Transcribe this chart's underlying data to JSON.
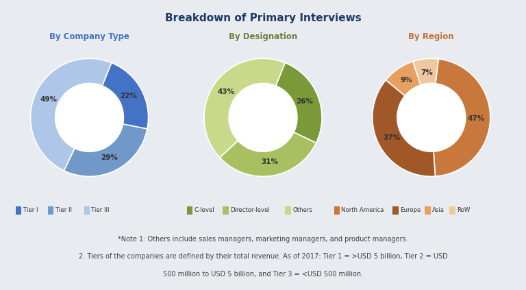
{
  "title": "Breakdown of Primary Interviews",
  "title_color": "#1f3864",
  "background_color": "#e8ecf0",
  "chart1_title": "By Company Type",
  "chart1_title_color": "#4472c4",
  "chart1_values": [
    22,
    29,
    49
  ],
  "chart1_labels": [
    "22%",
    "29%",
    "49%"
  ],
  "chart1_colors": [
    "#4472c4",
    "#7098c8",
    "#aec6e8"
  ],
  "chart1_legend": [
    "Tier I",
    "Tier II",
    "Tier III"
  ],
  "chart1_startangle": 68,
  "chart2_title": "By Designation",
  "chart2_title_color": "#6b7f3e",
  "chart2_values": [
    26,
    31,
    43
  ],
  "chart2_labels": [
    "26%",
    "31%",
    "43%"
  ],
  "chart2_colors": [
    "#7a9a3a",
    "#a8c060",
    "#c8d98a"
  ],
  "chart2_legend": [
    "C-level",
    "Director-level",
    "Others"
  ],
  "chart2_startangle": 68,
  "chart3_title": "By Region",
  "chart3_title_color": "#c07030",
  "chart3_values": [
    47,
    37,
    9,
    7
  ],
  "chart3_labels": [
    "47%",
    "37%",
    "9%",
    "7%"
  ],
  "chart3_colors": [
    "#c8783a",
    "#a05828",
    "#e8a060",
    "#f0c8a0"
  ],
  "chart3_legend": [
    "North America",
    "Europe",
    "Asia",
    "RoW"
  ],
  "chart3_startangle": 83,
  "legend_groups": [
    {
      "colors": [
        "#4472c4",
        "#7098c8",
        "#aec6e8"
      ],
      "labels": [
        "Tier I",
        "Tier II",
        "Tier III"
      ]
    },
    {
      "colors": [
        "#7a9a3a",
        "#a8c060",
        "#c8d98a"
      ],
      "labels": [
        "C-level",
        "Director-level",
        "Others"
      ]
    },
    {
      "colors": [
        "#c8783a",
        "#a05828",
        "#e8a060",
        "#f0c8a0"
      ],
      "labels": [
        "North America",
        "Europe",
        "Asia",
        "RoW"
      ]
    }
  ],
  "note_line1": "*Note 1: Others include sales managers, marketing managers, and product managers.",
  "note_line2": "2. Tiers of the companies are defined by their total revenue. As of 2017: Tier 1 = >USD 5 billion, Tier 2 = USD",
  "note_line3": "500 million to USD 5 billion, and Tier 3 = <USD 500 million.",
  "note_color": "#404040"
}
